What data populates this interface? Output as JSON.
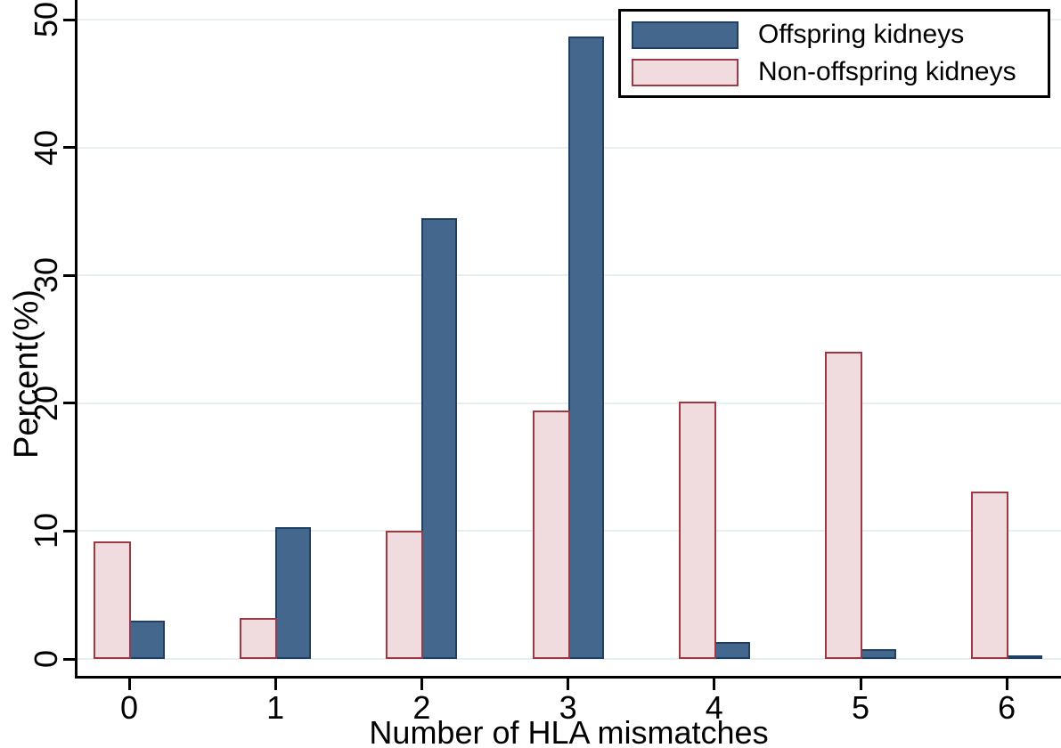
{
  "chart_data": {
    "type": "bar",
    "title": "",
    "xlabel": "Number of HLA mismatches",
    "ylabel": "Percent(%)",
    "categories": [
      "0",
      "1",
      "2",
      "3",
      "4",
      "5",
      "6"
    ],
    "series": [
      {
        "name": "Offspring kidneys",
        "color": "#44688d",
        "border_color": "#1f4064",
        "values": [
          3.0,
          10.3,
          34.5,
          48.7,
          1.3,
          0.8,
          0.3
        ]
      },
      {
        "name": "Non-offspring kidneys",
        "color": "#f0dcdf",
        "border_color": "#9e3944",
        "values": [
          9.2,
          3.2,
          10.0,
          19.4,
          20.1,
          24.0,
          13.1
        ]
      }
    ],
    "yticks": [
      0,
      10,
      20,
      30,
      40,
      50
    ],
    "ylim": [
      0,
      51.5
    ],
    "grid": true,
    "gridline_color": "#e4f1ee",
    "axis_color": "#000000",
    "legend_position": "top-right",
    "bar_pair_order": "non-offspring left, offspring right"
  }
}
